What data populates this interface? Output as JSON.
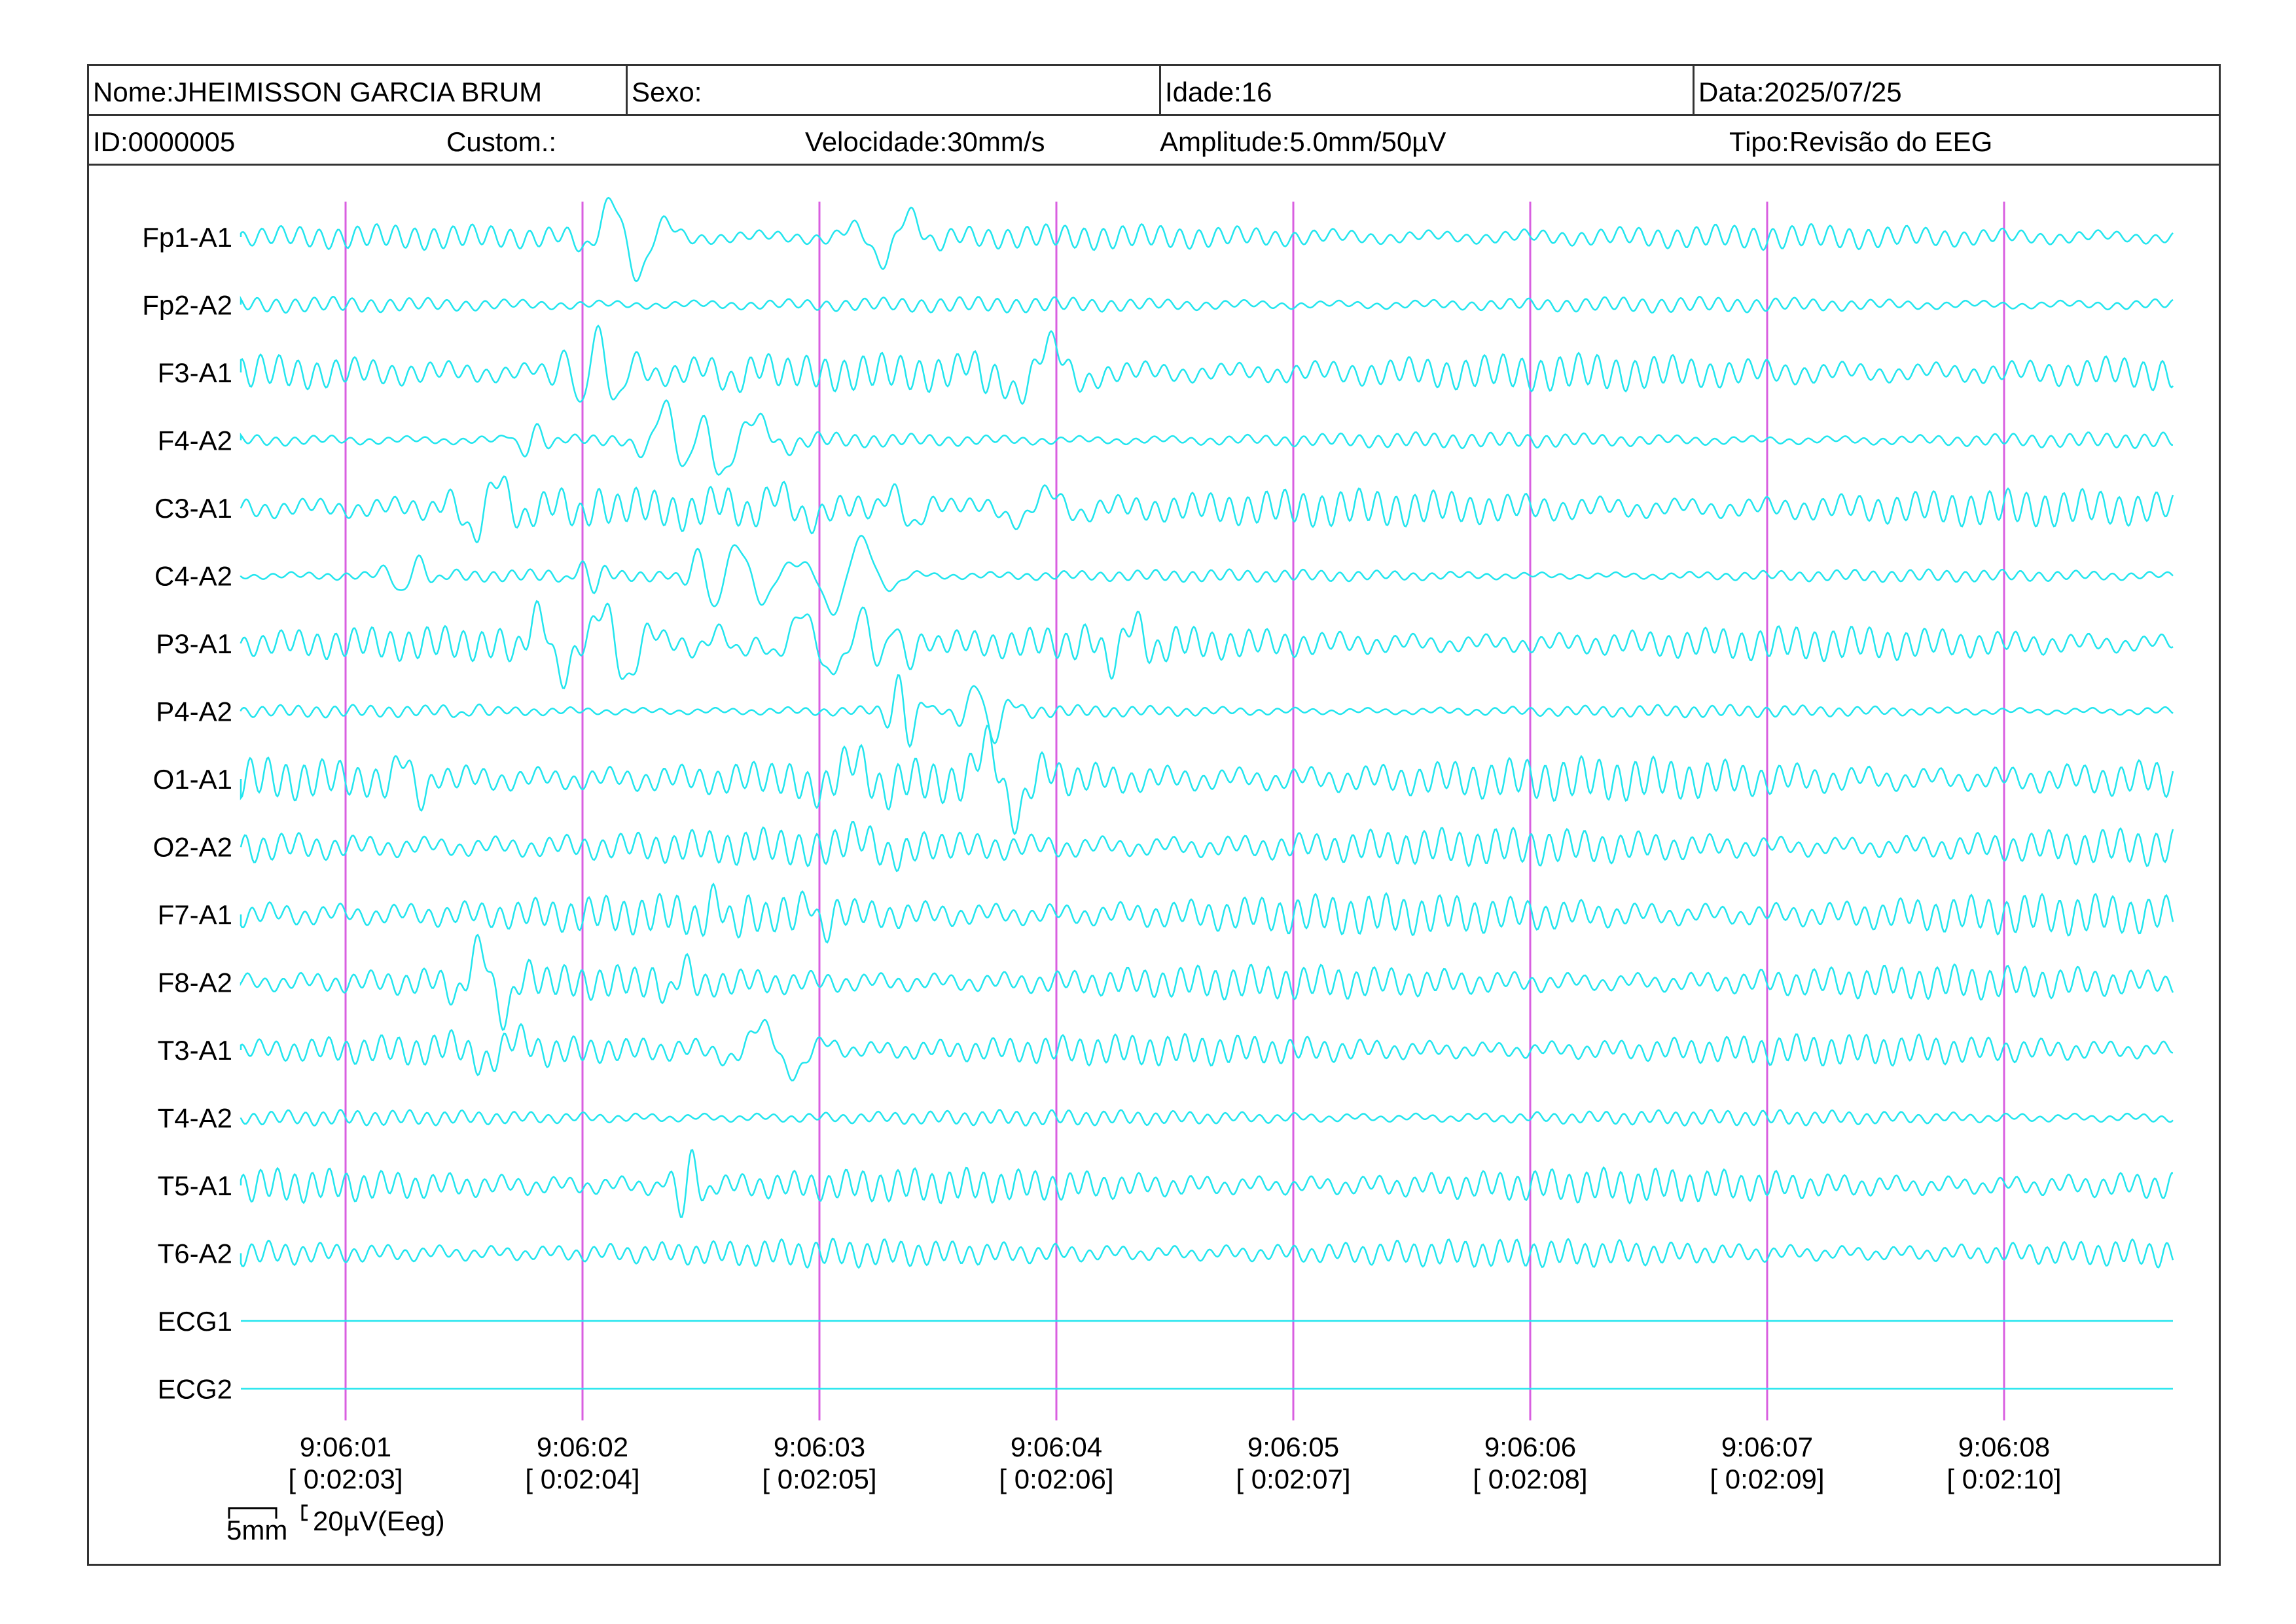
{
  "header": {
    "name": "Nome:JHEIMISSON GARCIA BRUM",
    "sex": "Sexo:",
    "age": "Idade:16",
    "date": "Data:2025/07/25",
    "id": "ID:0000005",
    "custom": "Custom.:",
    "speed": "Velocidade:30mm/s",
    "amplitude": "Amplitude:5.0mm/50µV",
    "type": "Tipo:Revisão do EEG"
  },
  "channels": [
    "Fp1-A1",
    "Fp2-A2",
    "F3-A1",
    "F4-A2",
    "C3-A1",
    "C4-A2",
    "P3-A1",
    "P4-A2",
    "O1-A1",
    "O2-A2",
    "F7-A1",
    "F8-A2",
    "T3-A1",
    "T4-A2",
    "T5-A1",
    "T6-A2",
    "ECG1",
    "ECG2"
  ],
  "time_marks": [
    {
      "clock": "9:06:01",
      "elapsed": "[ 0:02:03]"
    },
    {
      "clock": "9:06:02",
      "elapsed": "[ 0:02:04]"
    },
    {
      "clock": "9:06:03",
      "elapsed": "[ 0:02:05]"
    },
    {
      "clock": "9:06:04",
      "elapsed": "[ 0:02:06]"
    },
    {
      "clock": "9:06:05",
      "elapsed": "[ 0:02:07]"
    },
    {
      "clock": "9:06:06",
      "elapsed": "[ 0:02:08]"
    },
    {
      "clock": "9:06:07",
      "elapsed": "[ 0:02:09]"
    },
    {
      "clock": "9:06:08",
      "elapsed": "[ 0:02:10]"
    }
  ],
  "calibration": {
    "time_scale": "5mm",
    "amplitude_scale": "20µV(Eeg)"
  },
  "colors": {
    "trace": "#22e5ee",
    "marker": "#d95fe0",
    "border": "#333333"
  }
}
